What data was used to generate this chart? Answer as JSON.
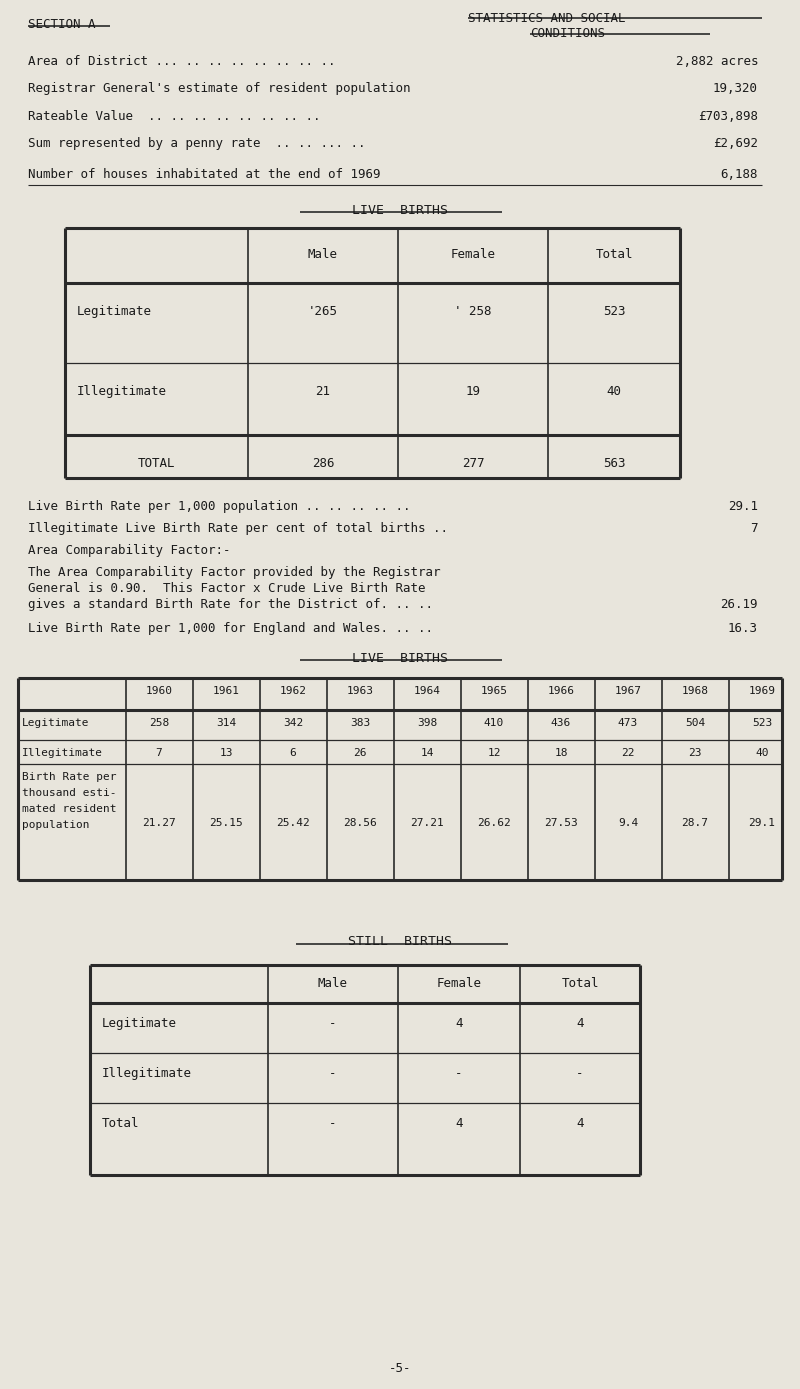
{
  "bg_color": "#e8e5dc",
  "text_color": "#1a1a1a",
  "header_left": "SECTION A",
  "header_right_line1": "STATISTICS AND SOCIAL",
  "header_right_line2": "CONDITIONS",
  "stats": [
    {
      "label": "Area of District ... .. .. .. .. .. .. ..",
      "value": "2,882 acres"
    },
    {
      "label": "Registrar General's estimate of resident population",
      "value": "19,320"
    },
    {
      "label": "Rateable Value  .. .. .. .. .. .. .. ..",
      "value": "£703,898"
    },
    {
      "label": "Sum represented by a penny rate  .. .. ... ..",
      "value": "£2,692"
    },
    {
      "label": "Number of houses inhabitated at the end of 1969",
      "value": "6,188"
    }
  ],
  "live_births_title": "LIVE  BIRTHS",
  "notes": [
    {
      "text": "Live Birth Rate per 1,000 population .. .. .. .. ..",
      "value": "29.1"
    },
    {
      "text": "Illegitimate Live Birth Rate per cent of total births ..",
      "value": "7"
    },
    {
      "text": "Area Comparability Factor:-",
      "value": ""
    }
  ],
  "para_lines": [
    "The Area Comparability Factor provided by the Registrar",
    "General is 0.90.  This Factor x Crude Live Birth Rate",
    "gives a standard Birth Rate for the District of. .. .."
  ],
  "para_value": "26.19",
  "england_text": "Live Birth Rate per 1,000 for England and Wales. .. ..",
  "england_value": "16.3",
  "live_births2_title": "LIVE  BIRTHS",
  "lb2_years": [
    "1960",
    "1961",
    "1962",
    "1963",
    "1964",
    "1965",
    "1966",
    "1967",
    "1968",
    "1969"
  ],
  "lb2_legitimate": [
    "258",
    "314",
    "342",
    "383",
    "398",
    "410",
    "436",
    "473",
    "504",
    "523"
  ],
  "lb2_illegitimate": [
    "7",
    "13",
    "6",
    "26",
    "14",
    "12",
    "18",
    "22",
    "23",
    "40"
  ],
  "lb2_rate": [
    "21.27",
    "25.15",
    "25.42",
    "28.56",
    "27.21",
    "26.62",
    "27.53",
    "9.4",
    "28.7",
    "29.1"
  ],
  "lb2_row_label0": "Legitimate",
  "lb2_row_label1": "Illegitimate",
  "lb2_row_label2a": "Birth Rate per",
  "lb2_row_label2b": "thousand esti-",
  "lb2_row_label2c": "mated resident",
  "lb2_row_label2d": "population",
  "still_births_title": "STILL  BIRTHS",
  "sb_table_rows": [
    [
      "Legitimate",
      "-",
      "4",
      "4"
    ],
    [
      "Illegitimate",
      "-",
      "-",
      "-"
    ],
    [
      "Total",
      "-",
      "4",
      "4"
    ]
  ],
  "footer": "-5-"
}
